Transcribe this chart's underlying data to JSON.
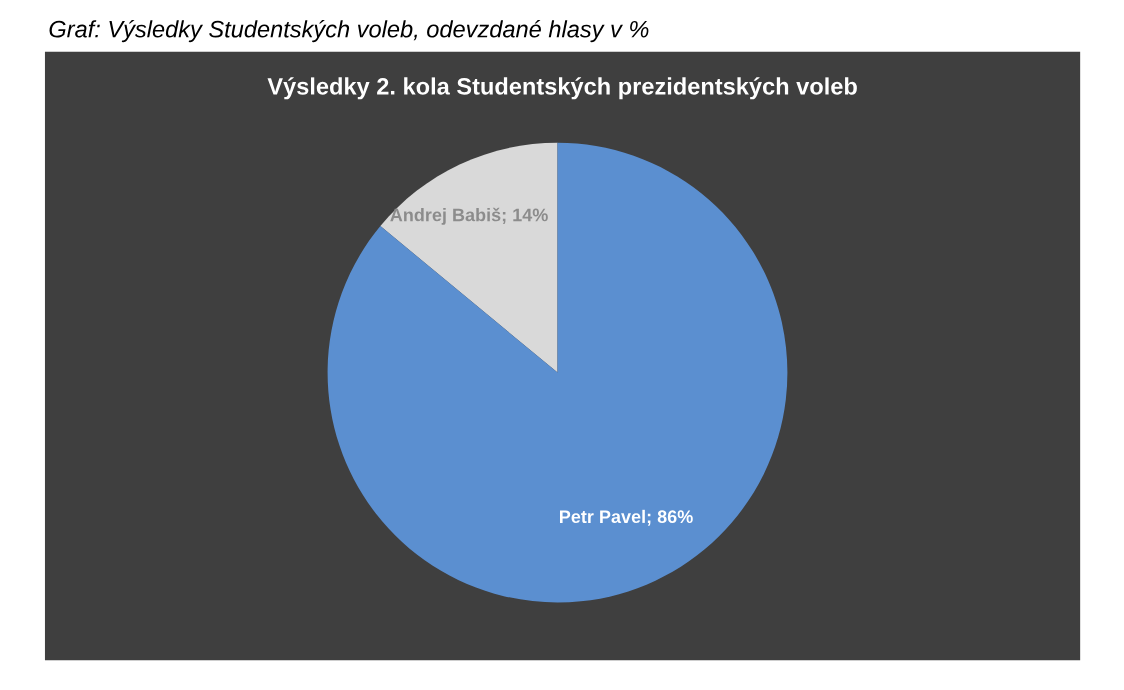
{
  "chart_data": {
    "type": "pie",
    "title": "Výsledky 2. kola Studentských prezidentských voleb",
    "annotations": [
      "Graf: Výsledky Studentských voleb, odevzdané hlasy v %"
    ],
    "categories": [
      "Andrej Babiš",
      "Petr Pavel"
    ],
    "values": [
      14,
      86
    ],
    "colors": [
      "#d9d9d9",
      "#5b8fd0"
    ],
    "value_labels": [
      "14%",
      "86%"
    ]
  }
}
